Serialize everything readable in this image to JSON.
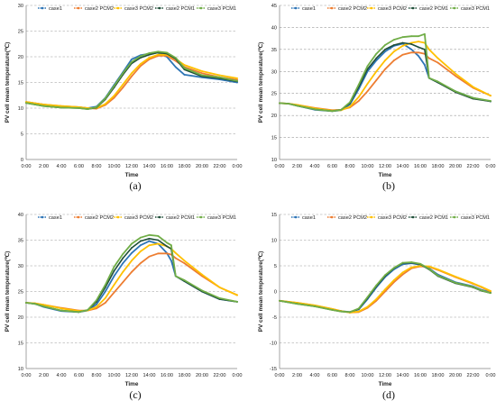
{
  "chart_data": [
    {
      "type": "line",
      "caption": "(a)",
      "xlabel": "Time",
      "ylabel": "PV cell mean temperature(℃)",
      "ylim": [
        0,
        30
      ],
      "y_ticks": [
        0,
        5,
        10,
        15,
        20,
        25,
        30
      ],
      "x_ticks": [
        "0:00",
        "2:00",
        "4:00",
        "6:00",
        "8:00",
        "10:00",
        "12:00",
        "14:00",
        "16:00",
        "18:00",
        "20:00",
        "22:00",
        "0:00"
      ],
      "x_range_hours": [
        0,
        24
      ],
      "grid": "horizontal dashed",
      "legend": "top",
      "series": [
        {
          "name": "case1",
          "color": "#2e75b6",
          "x": [
            0,
            2,
            4,
            6,
            7,
            8,
            9,
            10,
            11,
            12,
            13,
            14,
            15,
            16,
            17,
            18,
            20,
            22,
            24
          ],
          "values": [
            11.2,
            10.7,
            10.3,
            10.2,
            10.0,
            10.3,
            12.0,
            14.5,
            17.0,
            19.5,
            20.3,
            20.6,
            20.8,
            20.0,
            18.0,
            16.5,
            16.0,
            15.6,
            15.0
          ]
        },
        {
          "name": "case2 PCM2",
          "color": "#ed7d31",
          "x": [
            0,
            2,
            4,
            6,
            7,
            8,
            9,
            10,
            11,
            12,
            13,
            14,
            15,
            16,
            17,
            18,
            20,
            22,
            24
          ],
          "values": [
            11.2,
            10.7,
            10.4,
            10.2,
            10.0,
            9.9,
            10.6,
            12.0,
            14.0,
            16.2,
            18.2,
            19.5,
            20.2,
            20.2,
            19.2,
            18.0,
            16.8,
            16.0,
            15.5
          ]
        },
        {
          "name": "case3 PCM2",
          "color": "#ffc000",
          "x": [
            0,
            2,
            4,
            6,
            7,
            8,
            9,
            10,
            11,
            12,
            13,
            14,
            15,
            16,
            17,
            18,
            20,
            22,
            24
          ],
          "values": [
            11.2,
            10.7,
            10.4,
            10.2,
            10.0,
            10.0,
            10.8,
            12.4,
            14.6,
            16.8,
            18.6,
            19.8,
            20.4,
            20.4,
            19.6,
            18.4,
            17.2,
            16.4,
            15.8
          ]
        },
        {
          "name": "case2 PCM1",
          "color": "#1e4e38",
          "x": [
            0,
            2,
            4,
            6,
            7,
            8,
            9,
            10,
            11,
            12,
            13,
            14,
            15,
            16,
            17,
            18,
            20,
            22,
            24
          ],
          "values": [
            11.0,
            10.4,
            10.1,
            10.0,
            9.8,
            10.1,
            11.7,
            14.0,
            16.5,
            18.7,
            19.8,
            20.4,
            20.8,
            20.6,
            19.6,
            17.5,
            16.2,
            15.8,
            15.2
          ]
        },
        {
          "name": "case3 PCM1",
          "color": "#70ad47",
          "x": [
            0,
            2,
            4,
            6,
            7,
            8,
            9,
            10,
            11,
            12,
            13,
            14,
            15,
            16,
            17,
            18,
            20,
            22,
            24
          ],
          "values": [
            11.0,
            10.4,
            10.1,
            10.0,
            9.8,
            10.2,
            11.9,
            14.3,
            16.8,
            19.0,
            20.1,
            20.7,
            21.0,
            20.8,
            19.8,
            17.8,
            16.4,
            16.0,
            15.3
          ]
        }
      ]
    },
    {
      "type": "line",
      "caption": "(b)",
      "xlabel": "Time",
      "ylabel": "PV cell mean temperature(℃)",
      "ylim": [
        10,
        45
      ],
      "y_ticks": [
        10,
        15,
        20,
        25,
        30,
        35,
        40,
        45
      ],
      "x_ticks": [
        "0:00",
        "2:00",
        "4:00",
        "6:00",
        "8:00",
        "10:00",
        "12:00",
        "14:00",
        "16:00",
        "18:00",
        "20:00",
        "22:00",
        "0:00"
      ],
      "x_range_hours": [
        0,
        24
      ],
      "grid": "horizontal dashed",
      "legend": "top",
      "series": [
        {
          "name": "case1",
          "color": "#2e75b6",
          "x": [
            0,
            1,
            2,
            4,
            6,
            7,
            8,
            9,
            10,
            11,
            12,
            13,
            14,
            15,
            15.8,
            16.5,
            17,
            18,
            20,
            22,
            24
          ],
          "values": [
            22.8,
            22.7,
            22.2,
            21.3,
            21.0,
            21.2,
            22.5,
            26.0,
            30.0,
            32.5,
            34.5,
            35.8,
            36.3,
            35.0,
            33.5,
            31.5,
            28.5,
            27.5,
            25.5,
            24.0,
            23.2
          ]
        },
        {
          "name": "case2 PCM2",
          "color": "#ed7d31",
          "x": [
            0,
            1,
            2,
            4,
            6,
            7,
            8,
            9,
            10,
            11,
            12,
            13,
            14,
            15,
            15.8,
            16.5,
            17,
            18,
            20,
            22,
            24
          ],
          "values": [
            22.8,
            22.7,
            22.4,
            21.7,
            21.2,
            21.3,
            21.8,
            23.3,
            25.5,
            28.0,
            30.5,
            32.5,
            33.8,
            34.3,
            34.3,
            34.0,
            33.0,
            32.0,
            29.0,
            26.3,
            24.5
          ]
        },
        {
          "name": "case3 PCM2",
          "color": "#ffc000",
          "x": [
            0,
            1,
            2,
            4,
            6,
            7,
            8,
            9,
            10,
            11,
            12,
            13,
            14,
            15,
            15.8,
            16.5,
            17,
            18,
            20,
            22,
            24
          ],
          "values": [
            22.8,
            22.7,
            22.4,
            21.6,
            21.1,
            21.2,
            22.0,
            24.2,
            27.2,
            30.0,
            32.5,
            34.5,
            35.8,
            36.5,
            36.8,
            36.5,
            35.0,
            33.0,
            29.5,
            26.5,
            24.5
          ]
        },
        {
          "name": "case2 PCM1",
          "color": "#1e4e38",
          "x": [
            0,
            1,
            2,
            4,
            6,
            7,
            8,
            9,
            10,
            11,
            12,
            13,
            14,
            15,
            15.8,
            16.5,
            17,
            18,
            20,
            22,
            24
          ],
          "values": [
            22.8,
            22.7,
            22.2,
            21.4,
            21.0,
            21.3,
            22.8,
            26.5,
            30.5,
            33.0,
            35.0,
            36.0,
            36.5,
            36.2,
            35.5,
            35.0,
            28.5,
            27.5,
            25.3,
            23.8,
            23.2
          ]
        },
        {
          "name": "case3 PCM1",
          "color": "#70ad47",
          "x": [
            0,
            1,
            2,
            4,
            6,
            7,
            8,
            9,
            10,
            11,
            12,
            13,
            14,
            15,
            15.8,
            16.5,
            17,
            18,
            20,
            22,
            24
          ],
          "values": [
            22.8,
            22.7,
            22.2,
            21.4,
            21.0,
            21.3,
            23.0,
            27.0,
            31.2,
            34.0,
            36.0,
            37.2,
            37.8,
            38.0,
            38.0,
            38.5,
            28.5,
            27.7,
            25.5,
            24.0,
            23.3
          ]
        }
      ]
    },
    {
      "type": "line",
      "caption": "(c)",
      "xlabel": "Time",
      "ylabel": "PV cell mean temperature(℃)",
      "ylim": [
        10,
        40
      ],
      "y_ticks": [
        10,
        15,
        20,
        25,
        30,
        35,
        40
      ],
      "x_ticks": [
        "0:00",
        "2:00",
        "4:00",
        "6:00",
        "8:00",
        "10:00",
        "12:00",
        "14:00",
        "16:00",
        "18:00",
        "20:00",
        "22:00",
        "0:00"
      ],
      "x_range_hours": [
        0,
        24
      ],
      "grid": "horizontal dashed",
      "legend": "top",
      "series": [
        {
          "name": "case1",
          "color": "#2e75b6",
          "x": [
            0,
            1,
            2,
            4,
            6,
            7,
            8,
            9,
            10,
            11,
            12,
            13,
            14,
            15,
            16,
            16.5,
            17,
            18,
            20,
            22,
            24
          ],
          "values": [
            22.8,
            22.6,
            22.0,
            21.2,
            21.0,
            21.3,
            22.5,
            25.0,
            28.0,
            30.5,
            32.5,
            34.0,
            34.8,
            34.3,
            32.5,
            31.0,
            28.0,
            27.0,
            25.0,
            23.5,
            23.0
          ]
        },
        {
          "name": "case2 PCM2",
          "color": "#ed7d31",
          "x": [
            0,
            1,
            2,
            4,
            6,
            7,
            8,
            9,
            10,
            11,
            12,
            13,
            14,
            15,
            16,
            16.5,
            17,
            18,
            20,
            22,
            24
          ],
          "values": [
            22.8,
            22.7,
            22.4,
            21.8,
            21.3,
            21.3,
            21.7,
            22.8,
            24.8,
            26.8,
            28.8,
            30.5,
            31.8,
            32.4,
            32.4,
            32.2,
            31.5,
            30.5,
            28.0,
            25.8,
            24.3
          ]
        },
        {
          "name": "case3 PCM2",
          "color": "#ffc000",
          "x": [
            0,
            1,
            2,
            4,
            6,
            7,
            8,
            9,
            10,
            11,
            12,
            13,
            14,
            15,
            16,
            16.5,
            17,
            18,
            20,
            22,
            24
          ],
          "values": [
            22.8,
            22.7,
            22.4,
            21.7,
            21.2,
            21.3,
            22.0,
            23.7,
            26.3,
            28.8,
            31.0,
            32.8,
            34.0,
            34.3,
            33.8,
            33.3,
            32.5,
            31.0,
            28.3,
            25.8,
            24.3
          ]
        },
        {
          "name": "case2 PCM1",
          "color": "#1e4e38",
          "x": [
            0,
            1,
            2,
            4,
            6,
            7,
            8,
            9,
            10,
            11,
            12,
            13,
            14,
            15,
            16,
            16.5,
            17,
            18,
            20,
            22,
            24
          ],
          "values": [
            22.8,
            22.6,
            22.1,
            21.3,
            21.0,
            21.4,
            23.0,
            25.8,
            29.0,
            31.5,
            33.5,
            34.8,
            35.3,
            35.0,
            33.8,
            33.3,
            28.0,
            27.0,
            25.0,
            23.5,
            23.0
          ]
        },
        {
          "name": "case3 PCM1",
          "color": "#70ad47",
          "x": [
            0,
            1,
            2,
            4,
            6,
            7,
            8,
            9,
            10,
            11,
            12,
            13,
            14,
            15,
            16,
            16.5,
            17,
            18,
            20,
            22,
            24
          ],
          "values": [
            22.8,
            22.6,
            22.1,
            21.3,
            21.0,
            21.4,
            23.3,
            26.3,
            29.8,
            32.3,
            34.3,
            35.5,
            36.0,
            35.8,
            34.5,
            34.0,
            28.0,
            27.2,
            25.2,
            23.7,
            23.0
          ]
        }
      ]
    },
    {
      "type": "line",
      "caption": "(d)",
      "xlabel": "Time",
      "ylabel": "PV cell mean temperature(℃)",
      "ylim": [
        -15,
        15
      ],
      "y_ticks": [
        -15,
        -10,
        -5,
        0,
        5,
        10,
        15
      ],
      "x_ticks": [
        "0:00",
        "2:00",
        "4:00",
        "6:00",
        "8:00",
        "10:00",
        "12:00",
        "14:00",
        "16:00",
        "18:00",
        "20:00",
        "22:00",
        "0:00"
      ],
      "x_range_hours": [
        0,
        24
      ],
      "grid": "horizontal dashed",
      "legend": "top",
      "series": [
        {
          "name": "case1",
          "color": "#2e75b6",
          "x": [
            0,
            2,
            4,
            6,
            7,
            8,
            9,
            10,
            11,
            12,
            13,
            14,
            15,
            16,
            17,
            18,
            20,
            22,
            23,
            24
          ],
          "values": [
            -1.8,
            -2.3,
            -2.8,
            -3.5,
            -3.8,
            -4.0,
            -3.5,
            -1.5,
            0.8,
            2.8,
            4.3,
            5.3,
            5.5,
            5.2,
            4.5,
            3.3,
            1.8,
            1.0,
            0.3,
            -0.2
          ]
        },
        {
          "name": "case2 PCM2",
          "color": "#ed7d31",
          "x": [
            0,
            2,
            4,
            6,
            7,
            8,
            9,
            10,
            11,
            12,
            13,
            14,
            15,
            16,
            17,
            18,
            20,
            22,
            23,
            24
          ],
          "values": [
            -1.8,
            -2.2,
            -2.7,
            -3.4,
            -3.8,
            -4.1,
            -4.0,
            -3.2,
            -1.8,
            0.0,
            1.8,
            3.3,
            4.5,
            4.9,
            4.8,
            4.2,
            2.8,
            1.5,
            0.8,
            0.0
          ]
        },
        {
          "name": "case3 PCM2",
          "color": "#ffc000",
          "x": [
            0,
            2,
            4,
            6,
            7,
            8,
            9,
            10,
            11,
            12,
            13,
            14,
            15,
            16,
            17,
            18,
            20,
            22,
            23,
            24
          ],
          "values": [
            -1.8,
            -2.2,
            -2.7,
            -3.4,
            -3.8,
            -4.1,
            -3.9,
            -3.0,
            -1.5,
            0.4,
            2.2,
            3.7,
            4.7,
            5.0,
            4.9,
            4.3,
            2.9,
            1.6,
            0.9,
            0.1
          ]
        },
        {
          "name": "case2 PCM1",
          "color": "#1e4e38",
          "x": [
            0,
            2,
            4,
            6,
            7,
            8,
            9,
            10,
            11,
            12,
            13,
            14,
            15,
            16,
            17,
            18,
            20,
            22,
            23,
            24
          ],
          "values": [
            -1.8,
            -2.4,
            -2.9,
            -3.6,
            -3.9,
            -4.0,
            -3.4,
            -1.3,
            1.0,
            3.0,
            4.5,
            5.5,
            5.6,
            5.3,
            4.3,
            3.0,
            1.6,
            0.8,
            0.1,
            -0.3
          ]
        },
        {
          "name": "case3 PCM1",
          "color": "#70ad47",
          "x": [
            0,
            2,
            4,
            6,
            7,
            8,
            9,
            10,
            11,
            12,
            13,
            14,
            15,
            16,
            17,
            18,
            20,
            22,
            23,
            24
          ],
          "values": [
            -1.8,
            -2.4,
            -2.9,
            -3.6,
            -3.9,
            -4.0,
            -3.3,
            -1.1,
            1.2,
            3.2,
            4.6,
            5.6,
            5.7,
            5.4,
            4.4,
            3.1,
            1.7,
            0.9,
            0.2,
            -0.3
          ]
        }
      ]
    }
  ]
}
